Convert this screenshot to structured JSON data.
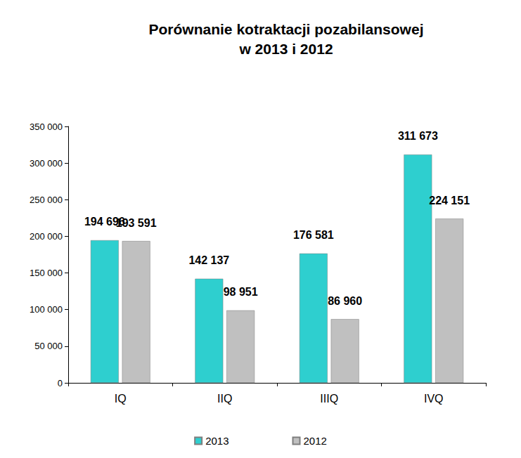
{
  "chart_data": {
    "type": "bar",
    "title": "Porównanie kotraktacji pozabilansowej\nw 2013 i 2012",
    "categories": [
      "IQ",
      "IIQ",
      "IIIQ",
      "IVQ"
    ],
    "series": [
      {
        "name": "2013",
        "color": "#2ecfcf",
        "values": [
          194696,
          142137,
          176581,
          311673
        ],
        "value_labels": [
          "194 696",
          "142 137",
          "176 581",
          "311 673"
        ]
      },
      {
        "name": "2012",
        "color": "#c0c0c0",
        "values": [
          193591,
          98951,
          86960,
          224151
        ],
        "value_labels": [
          "193 591",
          "98 951",
          "86 960",
          "224 151"
        ]
      }
    ],
    "ylim": [
      0,
      350000
    ],
    "yticks": [
      0,
      {
        "value": 50000,
        "label": "50 000"
      },
      {
        "value": 100000,
        "label": "100 000"
      },
      {
        "value": 150000,
        "label": "150 000"
      },
      {
        "value": 200000,
        "label": "200 000"
      },
      {
        "value": 250000,
        "label": "250 000"
      },
      {
        "value": 300000,
        "label": "300 000"
      },
      {
        "value": 350000,
        "label": "350 000"
      }
    ],
    "grid": false,
    "legend": "bottom",
    "data_labels": true
  }
}
